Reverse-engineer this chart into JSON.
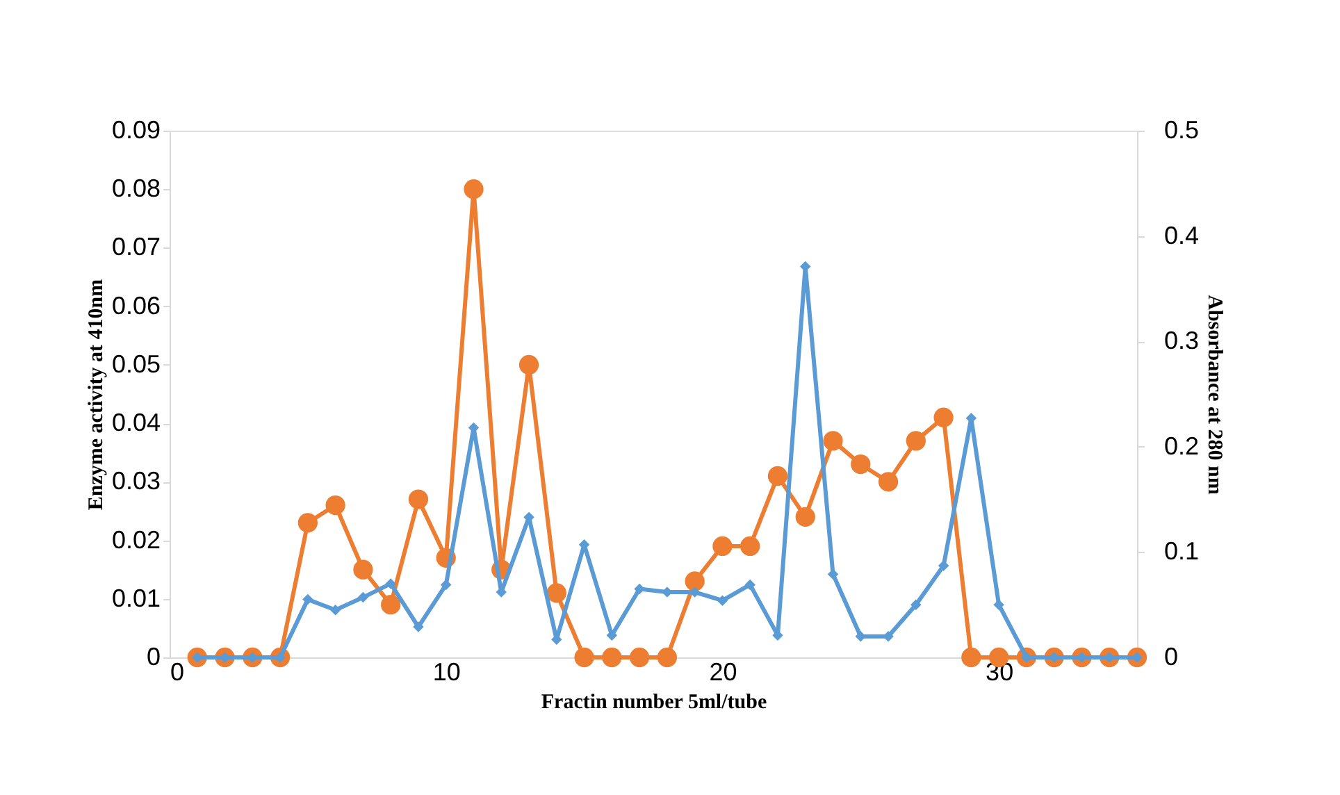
{
  "chart_data": {
    "type": "line",
    "xlabel": "Fractin number 5ml/tube",
    "ylabel": "Enzyme activity at 410nm",
    "y2label": "Absorbance at 280 nm",
    "x": [
      1,
      2,
      3,
      4,
      5,
      6,
      7,
      8,
      9,
      10,
      11,
      12,
      13,
      14,
      15,
      16,
      17,
      18,
      19,
      20,
      21,
      22,
      23,
      24,
      25,
      26,
      27,
      28,
      29,
      30,
      31,
      32,
      33,
      34,
      35
    ],
    "xlim": [
      0,
      35
    ],
    "xticks": [
      0,
      10,
      20,
      30
    ],
    "ylim": [
      0,
      0.09
    ],
    "yticks": [
      0,
      0.01,
      0.02,
      0.03,
      0.04,
      0.05,
      0.06,
      0.07,
      0.08,
      0.09
    ],
    "y2lim": [
      0,
      0.5
    ],
    "y2ticks": [
      0,
      0.1,
      0.2,
      0.3,
      0.4,
      0.5
    ],
    "grid": false,
    "line_style": "solid",
    "series": [
      {
        "color": "#ed7d31",
        "marker": "circle",
        "values": [
          0,
          0,
          0,
          0,
          0.023,
          0.026,
          0.015,
          0.009,
          0.027,
          0.017,
          0.08,
          0.015,
          0.05,
          0.011,
          0,
          0,
          0,
          0,
          0.013,
          0.019,
          0.019,
          0.031,
          0.024,
          0.037,
          0.033,
          0.03,
          0.037,
          0.041,
          0,
          0,
          0,
          0,
          0,
          0,
          0
        ]
      },
      {
        "color": "#5b9bd5",
        "marker": "diamond",
        "axis": "y2",
        "values": [
          0,
          0,
          0,
          0,
          0.055,
          0.045,
          0.057,
          0.07,
          0.029,
          0.069,
          0.218,
          0.062,
          0.133,
          0.017,
          0.107,
          0.021,
          0.065,
          0.062,
          0.062,
          0.054,
          0.069,
          0.021,
          0.371,
          0.079,
          0.02,
          0.02,
          0.05,
          0.087,
          0.227,
          0.05,
          0,
          0,
          0,
          0,
          0
        ]
      }
    ]
  }
}
